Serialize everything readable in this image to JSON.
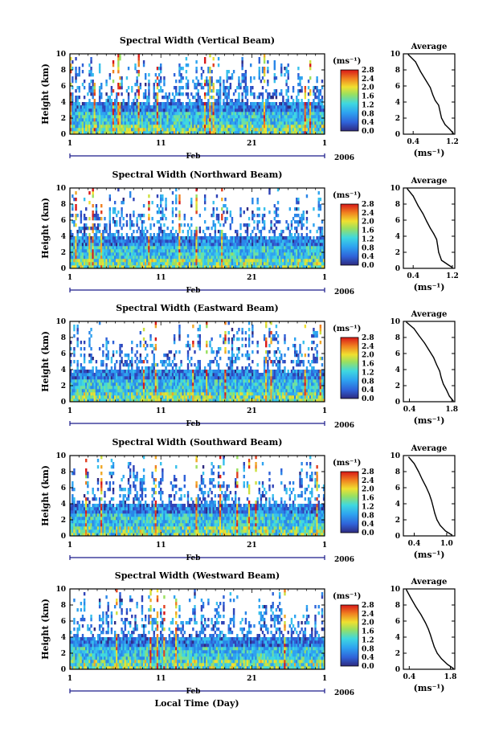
{
  "footer": {
    "xlabel": "Local Time (Day)"
  },
  "chart_data": [
    {
      "type": "heatmap",
      "title": "Spectral Width (Vertical Beam)",
      "ylabel": "Height (km)",
      "ylim": [
        0,
        10
      ],
      "yticks": [
        "0",
        "2",
        "4",
        "6",
        "8",
        "10"
      ],
      "xticks": [
        "1",
        "11",
        "21",
        "1"
      ],
      "month": "Feb",
      "year": "2006",
      "colorbar_unit": "(ms⁻¹)",
      "colorbar_ticks": [
        "0.0",
        "0.4",
        "0.8",
        "1.2",
        "1.6",
        "2.0",
        "2.4",
        "2.8"
      ]
    },
    {
      "type": "heatmap",
      "title": "Spectral Width (Northward Beam)",
      "ylabel": "Height (km)",
      "ylim": [
        0,
        10
      ],
      "yticks": [
        "0",
        "2",
        "4",
        "6",
        "8",
        "10"
      ],
      "xticks": [
        "1",
        "11",
        "21",
        "1"
      ],
      "month": "Feb",
      "year": "2006",
      "colorbar_unit": "(ms⁻¹)",
      "colorbar_ticks": [
        "0.0",
        "0.4",
        "0.8",
        "1.2",
        "1.6",
        "2.0",
        "2.4",
        "2.8"
      ]
    },
    {
      "type": "heatmap",
      "title": "Spectral Width (Eastward Beam)",
      "ylabel": "Height (km)",
      "ylim": [
        0,
        10
      ],
      "yticks": [
        "0",
        "2",
        "4",
        "6",
        "8",
        "10"
      ],
      "xticks": [
        "1",
        "11",
        "21",
        "1"
      ],
      "month": "Feb",
      "year": "2006",
      "colorbar_unit": "(ms⁻¹)",
      "colorbar_ticks": [
        "0.0",
        "0.4",
        "0.8",
        "1.2",
        "1.6",
        "2.0",
        "2.4",
        "2.8"
      ]
    },
    {
      "type": "heatmap",
      "title": "Spectral Width (Southward Beam)",
      "ylabel": "Height (km)",
      "ylim": [
        0,
        10
      ],
      "yticks": [
        "0",
        "2",
        "4",
        "6",
        "8",
        "10"
      ],
      "xticks": [
        "1",
        "11",
        "21",
        "1"
      ],
      "month": "Feb",
      "year": "2006",
      "colorbar_unit": "(ms⁻¹)",
      "colorbar_ticks": [
        "0.0",
        "0.4",
        "0.8",
        "1.2",
        "1.6",
        "2.0",
        "2.4",
        "2.8"
      ]
    },
    {
      "type": "heatmap",
      "title": "Spectral Width (Westward Beam)",
      "ylabel": "Height (km)",
      "ylim": [
        0,
        10
      ],
      "yticks": [
        "0",
        "2",
        "4",
        "6",
        "8",
        "10"
      ],
      "xticks": [
        "1",
        "11",
        "21",
        "1"
      ],
      "month": "Feb",
      "year": "2006",
      "colorbar_unit": "(ms⁻¹)",
      "colorbar_ticks": [
        "0.0",
        "0.4",
        "0.8",
        "1.2",
        "1.6",
        "2.0",
        "2.4",
        "2.8"
      ]
    },
    {
      "type": "line",
      "title": "Average",
      "xlabel": "(ms⁻¹)",
      "xlim": [
        0.2,
        1.25
      ],
      "ylim": [
        0,
        10
      ],
      "xticks": [
        "0.4",
        "1.2"
      ],
      "yticks": [
        "0",
        "2",
        "4",
        "6",
        "8",
        "10"
      ],
      "x": [
        1.22,
        1.15,
        1.05,
        0.98,
        0.95,
        0.92,
        0.85,
        0.8,
        0.75,
        0.65,
        0.55,
        0.45,
        0.3
      ],
      "y": [
        0.1,
        0.6,
        1.2,
        2.0,
        2.8,
        3.6,
        4.2,
        4.9,
        5.8,
        6.8,
        7.8,
        9.0,
        9.9
      ]
    },
    {
      "type": "line",
      "title": "Average",
      "xlabel": "(ms⁻¹)",
      "xlim": [
        0.2,
        1.25
      ],
      "ylim": [
        0,
        10
      ],
      "xticks": [
        "0.4",
        "1.2"
      ],
      "yticks": [
        "0",
        "2",
        "4",
        "6",
        "8",
        "10"
      ],
      "x": [
        1.2,
        1.1,
        0.98,
        0.92,
        0.9,
        0.88,
        0.82,
        0.75,
        0.68,
        0.6,
        0.5,
        0.4,
        0.28
      ],
      "y": [
        0.1,
        0.5,
        1.0,
        2.0,
        2.8,
        3.6,
        4.3,
        5.0,
        5.8,
        6.8,
        7.8,
        9.0,
        9.9
      ]
    },
    {
      "type": "line",
      "title": "Average",
      "xlabel": "(ms⁻¹)",
      "xlim": [
        0.2,
        1.9
      ],
      "ylim": [
        0,
        10
      ],
      "xticks": [
        "0.4",
        "1.8"
      ],
      "yticks": [
        "0",
        "2",
        "4",
        "6",
        "8",
        "10"
      ],
      "x": [
        1.85,
        1.72,
        1.62,
        1.52,
        1.45,
        1.4,
        1.3,
        1.2,
        1.05,
        0.9,
        0.72,
        0.55,
        0.3
      ],
      "y": [
        0.1,
        0.7,
        1.5,
        2.2,
        3.0,
        3.8,
        4.6,
        5.5,
        6.4,
        7.3,
        8.2,
        9.1,
        9.9
      ]
    },
    {
      "type": "line",
      "title": "Average",
      "xlabel": "(ms⁻¹)",
      "xlim": [
        0.2,
        1.15
      ],
      "ylim": [
        0,
        10
      ],
      "xticks": [
        "0.4",
        "1.0"
      ],
      "yticks": [
        "0",
        "2",
        "4",
        "6",
        "8",
        "10"
      ],
      "x": [
        1.1,
        0.98,
        0.88,
        0.82,
        0.78,
        0.75,
        0.72,
        0.68,
        0.62,
        0.55,
        0.48,
        0.4,
        0.3
      ],
      "y": [
        0.1,
        0.6,
        1.3,
        2.0,
        2.8,
        3.6,
        4.4,
        5.2,
        6.1,
        7.0,
        8.0,
        9.0,
        9.8
      ]
    },
    {
      "type": "line",
      "title": "Average",
      "xlabel": "(ms⁻¹)",
      "xlim": [
        0.2,
        1.95
      ],
      "ylim": [
        0,
        10
      ],
      "xticks": [
        "0.4",
        "1.8"
      ],
      "yticks": [
        "0",
        "2",
        "4",
        "6",
        "8",
        "10"
      ],
      "x": [
        1.9,
        1.7,
        1.5,
        1.35,
        1.25,
        1.18,
        1.12,
        1.05,
        0.95,
        0.8,
        0.62,
        0.45,
        0.3
      ],
      "y": [
        0.1,
        0.6,
        1.3,
        2.0,
        2.8,
        3.6,
        4.3,
        5.0,
        5.8,
        6.8,
        7.8,
        8.9,
        9.9
      ]
    }
  ]
}
